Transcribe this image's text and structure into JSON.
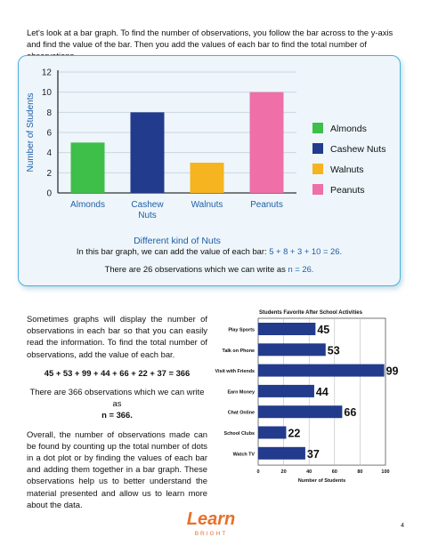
{
  "intro": {
    "text": "Let's look at a bar graph. To find the number of observations, you follow the bar across to the y-axis and find the value of the bar. Then you add the values of each bar to find the total number of observations."
  },
  "chart_data": [
    {
      "type": "bar",
      "categories": [
        "Almonds",
        "Cashew Nuts",
        "Walnuts",
        "Peanuts"
      ],
      "category_labels": [
        [
          "Almonds"
        ],
        [
          "Cashew",
          "Nuts"
        ],
        [
          "Walnuts"
        ],
        [
          "Peanuts"
        ]
      ],
      "values": [
        5,
        8,
        3,
        10
      ],
      "colors": [
        "#3dbf4a",
        "#223b8c",
        "#f5b420",
        "#ef6fa8"
      ],
      "xlabel": "Different kind of Nuts",
      "ylabel": "Number of Students",
      "ylim": [
        0,
        12
      ],
      "yticks": [
        0,
        2,
        4,
        6,
        8,
        10,
        12
      ],
      "grid": true,
      "legend": [
        "Almonds",
        "Cashew Nuts",
        "Walnuts",
        "Peanuts"
      ],
      "legend_position": "right"
    },
    {
      "type": "bar",
      "orientation": "horizontal",
      "title": "Students Favorite After School Activities",
      "categories": [
        "Play Sports",
        "Talk on Phone",
        "Visit with Friends",
        "Earn Money",
        "Chat Online",
        "School Clubs",
        "Watch TV"
      ],
      "values": [
        45,
        53,
        99,
        44,
        66,
        22,
        37
      ],
      "color": "#223b8c",
      "xlabel": "Number of Students",
      "xlim": [
        0,
        100
      ],
      "xticks": [
        0,
        20,
        40,
        60,
        80,
        100
      ],
      "data_labels": true
    }
  ],
  "calc": {
    "line1_text": "In this bar graph, we can add the value of each bar: ",
    "line1_expr": "5 + 8 + 3 + 10 = 26.",
    "line2_text": "There are 26 observations which we can write as ",
    "line2_expr": "n = 26."
  },
  "body": {
    "p1": "Sometimes graphs will display the number of observations in each bar so that you can easily read the information. To find the total number of observations, add the value of each bar.",
    "equation": "45 + 53 + 99 + 44 + 66 + 22 + 37 = 366",
    "p2": "There are 366 observations which we can write as",
    "p2_bold": "n = 366.",
    "p3": "Overall, the number of observations made can be found by counting up the total number of dots in a dot plot or by finding the values of each bar and adding them together in a bar graph. These observations help us to better understand the material presented and allow us to learn more about the data."
  },
  "logo": {
    "line1": "Learn",
    "line2": "BRIGHT"
  },
  "page_number": "4"
}
